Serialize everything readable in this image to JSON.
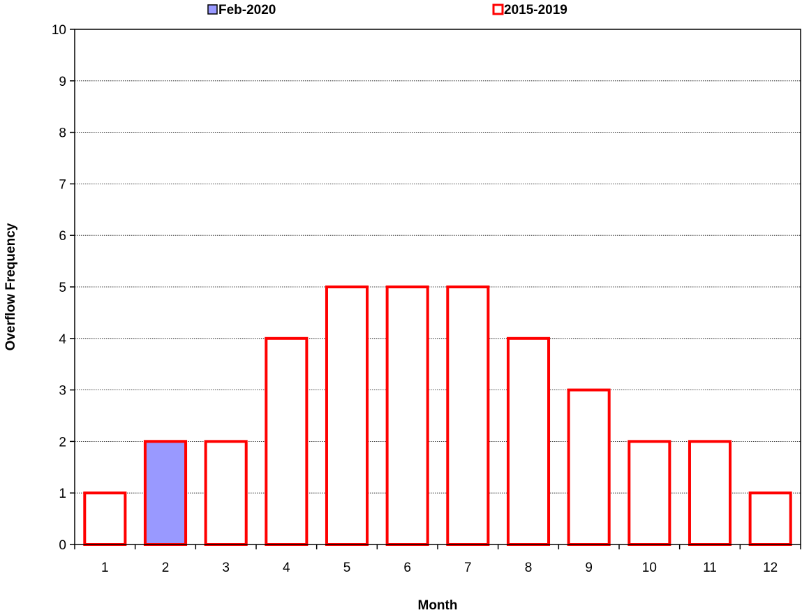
{
  "chart_data": {
    "type": "bar",
    "title": "",
    "xlabel": "Month",
    "ylabel": "Overflow Frequency",
    "categories": [
      "1",
      "2",
      "3",
      "4",
      "5",
      "6",
      "7",
      "8",
      "9",
      "10",
      "11",
      "12"
    ],
    "ylim": [
      0,
      10
    ],
    "yticks": [
      "0",
      "1",
      "2",
      "3",
      "4",
      "5",
      "6",
      "7",
      "8",
      "9",
      "10"
    ],
    "grid": true,
    "legend_position": "top",
    "series": [
      {
        "name": "Feb-2020",
        "values": [
          null,
          2,
          null,
          null,
          null,
          null,
          null,
          null,
          null,
          null,
          null,
          null
        ],
        "fill": "#9999ff",
        "stroke": "#ff0000"
      },
      {
        "name": "2015-2019",
        "values": [
          1,
          2,
          2,
          4,
          5,
          5,
          5,
          4,
          3,
          2,
          2,
          1
        ],
        "fill": "#ffffff",
        "stroke": "#ff0000"
      }
    ]
  }
}
